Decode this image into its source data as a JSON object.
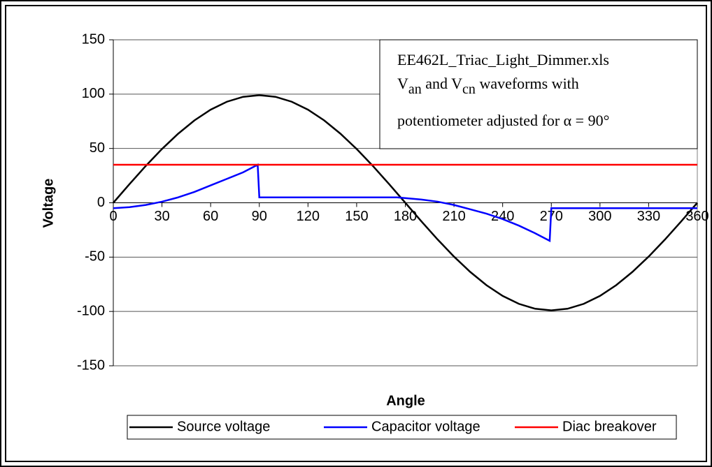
{
  "chart_data": {
    "type": "line",
    "annotation": {
      "line1": "EE462L_Triac_Light_Dimmer.xls",
      "line2": [
        "V",
        "an",
        " and V",
        "cn",
        " waveforms with"
      ],
      "line3": "potentiometer adjusted for α = 90°"
    },
    "xlabel": "Angle",
    "ylabel": "Voltage",
    "xlim": [
      0,
      360
    ],
    "xticks": [
      0,
      30,
      60,
      90,
      120,
      150,
      180,
      210,
      240,
      270,
      300,
      330,
      360
    ],
    "ylim": [
      -150,
      150
    ],
    "yticks": [
      -150,
      -100,
      -50,
      0,
      50,
      100,
      150
    ],
    "grid": true,
    "legend": "bottom",
    "series": [
      {
        "name": "Source voltage",
        "color": "#000000",
        "x": [
          0,
          10,
          20,
          30,
          40,
          50,
          60,
          70,
          80,
          90,
          100,
          110,
          120,
          130,
          140,
          150,
          160,
          170,
          180,
          190,
          200,
          210,
          220,
          230,
          240,
          250,
          260,
          270,
          280,
          290,
          300,
          310,
          320,
          330,
          340,
          350,
          360
        ],
        "values": [
          0,
          17.2,
          33.9,
          49.5,
          63.6,
          75.8,
          85.7,
          93.0,
          97.5,
          99,
          97.5,
          93.0,
          85.7,
          75.8,
          63.6,
          49.5,
          33.9,
          17.2,
          0,
          -17.2,
          -33.9,
          -49.5,
          -63.6,
          -75.8,
          -85.7,
          -93.0,
          -97.5,
          -99,
          -97.5,
          -93.0,
          -85.7,
          -75.8,
          -63.6,
          -49.5,
          -33.9,
          -17.2,
          0
        ]
      },
      {
        "name": "Capacitor voltage",
        "color": "#0000ff",
        "x": [
          0,
          10,
          20,
          30,
          40,
          50,
          60,
          70,
          80,
          89,
          90,
          120,
          150,
          175,
          190,
          200,
          210,
          220,
          230,
          240,
          250,
          260,
          269,
          270,
          300,
          330,
          360
        ],
        "values": [
          -5,
          -4,
          -2,
          1,
          5,
          10,
          16,
          22,
          28,
          35,
          5,
          5,
          5,
          5,
          3,
          1,
          -2,
          -6,
          -10,
          -15,
          -21,
          -28,
          -35,
          -5,
          -5,
          -5,
          -5
        ]
      },
      {
        "name": "Diac breakover",
        "color": "#ff0000",
        "x": [
          0,
          360
        ],
        "values": [
          35,
          35
        ]
      }
    ]
  }
}
